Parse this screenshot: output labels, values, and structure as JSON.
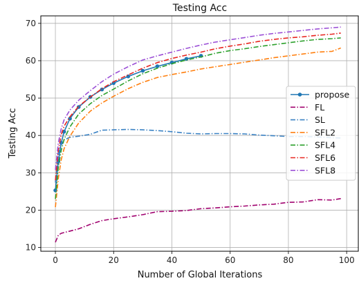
{
  "chart_data": {
    "type": "line",
    "title": "Testing Acc",
    "xlabel": "Number of Global Iterations",
    "ylabel": "Testing Acc",
    "xlim": [
      -5,
      104
    ],
    "ylim": [
      9,
      72
    ],
    "xticks": [
      0,
      20,
      40,
      60,
      80,
      100
    ],
    "yticks": [
      10,
      20,
      30,
      40,
      50,
      60,
      70
    ],
    "grid": true,
    "legend_position": "center-right",
    "x": [
      0,
      1,
      2,
      3,
      5,
      8,
      12,
      16,
      20,
      25,
      30,
      35,
      40,
      45,
      50,
      55,
      60,
      65,
      70,
      75,
      80,
      85,
      90,
      95,
      98
    ],
    "series": [
      {
        "name": "propose",
        "color": "#1f77b4",
        "dash": "solid",
        "marker": "circle",
        "values": [
          25.3,
          33,
          38,
          41,
          44.5,
          47.6,
          50.3,
          52.3,
          54,
          55.8,
          57.3,
          58.5,
          59.5,
          60.5,
          61.3,
          null,
          null,
          null,
          null,
          null,
          null,
          null,
          null,
          null,
          null
        ]
      },
      {
        "name": "FL",
        "color": "#a0006e",
        "dash": "dashdot",
        "values": [
          11.4,
          13.3,
          13.8,
          14,
          14.4,
          15,
          16.2,
          17.2,
          17.7,
          18.2,
          18.8,
          19.6,
          19.7,
          19.9,
          20.4,
          20.6,
          20.9,
          21.1,
          21.4,
          21.6,
          22.1,
          22.2,
          22.8,
          22.7,
          23.1
        ]
      },
      {
        "name": "SL",
        "color": "#3a82c4",
        "dash": "dashdot",
        "values": [
          27.4,
          35.2,
          37.8,
          38.8,
          39.5,
          39.8,
          40.3,
          41.4,
          41.5,
          41.6,
          41.5,
          41.3,
          41,
          40.6,
          40.4,
          40.5,
          40.5,
          40.4,
          40.1,
          39.9,
          39.7,
          39.7,
          39.6,
          39.4,
          39.3
        ]
      },
      {
        "name": "SFL2",
        "color": "#ff7f0e",
        "dash": "dashdot",
        "values": [
          20.8,
          28.5,
          33.5,
          36.5,
          39.8,
          43.3,
          46.5,
          48.7,
          50.5,
          52.5,
          54.2,
          55.5,
          56.3,
          57,
          57.8,
          58.4,
          59,
          59.6,
          60.2,
          60.8,
          61.3,
          61.8,
          62.3,
          62.5,
          63.4
        ]
      },
      {
        "name": "SFL4",
        "color": "#2ca02c",
        "dash": "dashdot",
        "values": [
          23,
          31.5,
          36,
          39,
          42.3,
          45.7,
          48.5,
          50.7,
          52.4,
          54.6,
          56.5,
          58,
          59.2,
          60.2,
          61,
          62,
          62.7,
          63.2,
          63.8,
          64.3,
          64.8,
          65.3,
          65.7,
          65.9,
          66.1
        ]
      },
      {
        "name": "SFL6",
        "color": "#e8251f",
        "dash": "dashdot",
        "values": [
          28,
          36,
          40.2,
          42.5,
          45,
          47.8,
          50.3,
          52.5,
          54.4,
          56.2,
          58,
          59.5,
          60.6,
          61.5,
          62.3,
          63.2,
          63.9,
          64.5,
          65.2,
          65.7,
          66.1,
          66.4,
          66.8,
          67.1,
          67.4
        ]
      },
      {
        "name": "SFL8",
        "color": "#9b4fd6",
        "dash": "dashdot",
        "values": [
          30.8,
          38,
          41.8,
          44.2,
          46.8,
          49.4,
          52,
          54.4,
          56.4,
          58.4,
          60.2,
          61.3,
          62.3,
          63.3,
          64.2,
          65,
          65.6,
          66.2,
          66.8,
          67.3,
          67.7,
          68.1,
          68.5,
          68.8,
          69
        ]
      }
    ]
  }
}
